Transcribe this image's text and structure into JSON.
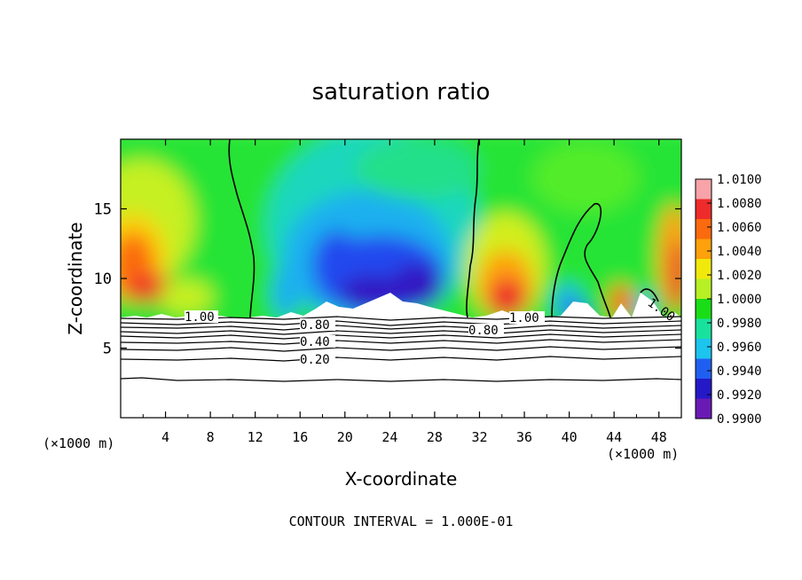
{
  "chart_data": {
    "type": "heatmap",
    "title": "saturation ratio",
    "xlabel": "X-coordinate",
    "ylabel": "Z-coordinate",
    "x_unit_left": "(×1000 m)",
    "x_unit_right": "(×1000 m)",
    "footer": "CONTOUR INTERVAL = 1.000E-01",
    "xlim": [
      0,
      50
    ],
    "ylim": [
      0,
      20
    ],
    "x_ticks": [
      "4",
      "8",
      "12",
      "16",
      "20",
      "24",
      "28",
      "32",
      "36",
      "40",
      "44",
      "48"
    ],
    "y_ticks": [
      "5",
      "10",
      "15"
    ],
    "colorbar": {
      "min": 0.99,
      "max": 1.01,
      "labels": [
        "1.0100",
        "1.0080",
        "1.0060",
        "1.0040",
        "1.0020",
        "1.0000",
        "0.9980",
        "0.9960",
        "0.9940",
        "0.9920",
        "0.9900"
      ],
      "colors": [
        "#f7a3a8",
        "#ee2b2b",
        "#fb6a0e",
        "#ffa10a",
        "#f1e90c",
        "#b7f024",
        "#19dd16",
        "#18e19e",
        "#1cc4ee",
        "#1f5ff0",
        "#2418c7",
        "#6a1ab4"
      ]
    },
    "cloud_base_km": 7.2,
    "contour_labels": [
      "1.00",
      "0.80",
      "0.40",
      "0.20",
      "1.00",
      "0.80",
      "1.00"
    ],
    "contour_lines_below": [
      {
        "level": "1.00",
        "z_km": 7.2
      },
      {
        "level": "0.90",
        "z_km": 6.9
      },
      {
        "level": "0.80",
        "z_km": 6.6
      },
      {
        "level": "0.70",
        "z_km": 6.2
      },
      {
        "level": "0.60",
        "z_km": 5.8
      },
      {
        "level": "0.50",
        "z_km": 5.4
      },
      {
        "level": "0.40",
        "z_km": 5.0
      },
      {
        "level": "0.30",
        "z_km": 4.6
      },
      {
        "level": "0.20",
        "z_km": 4.1
      },
      {
        "level": "0.10",
        "z_km": 2.7
      }
    ]
  }
}
